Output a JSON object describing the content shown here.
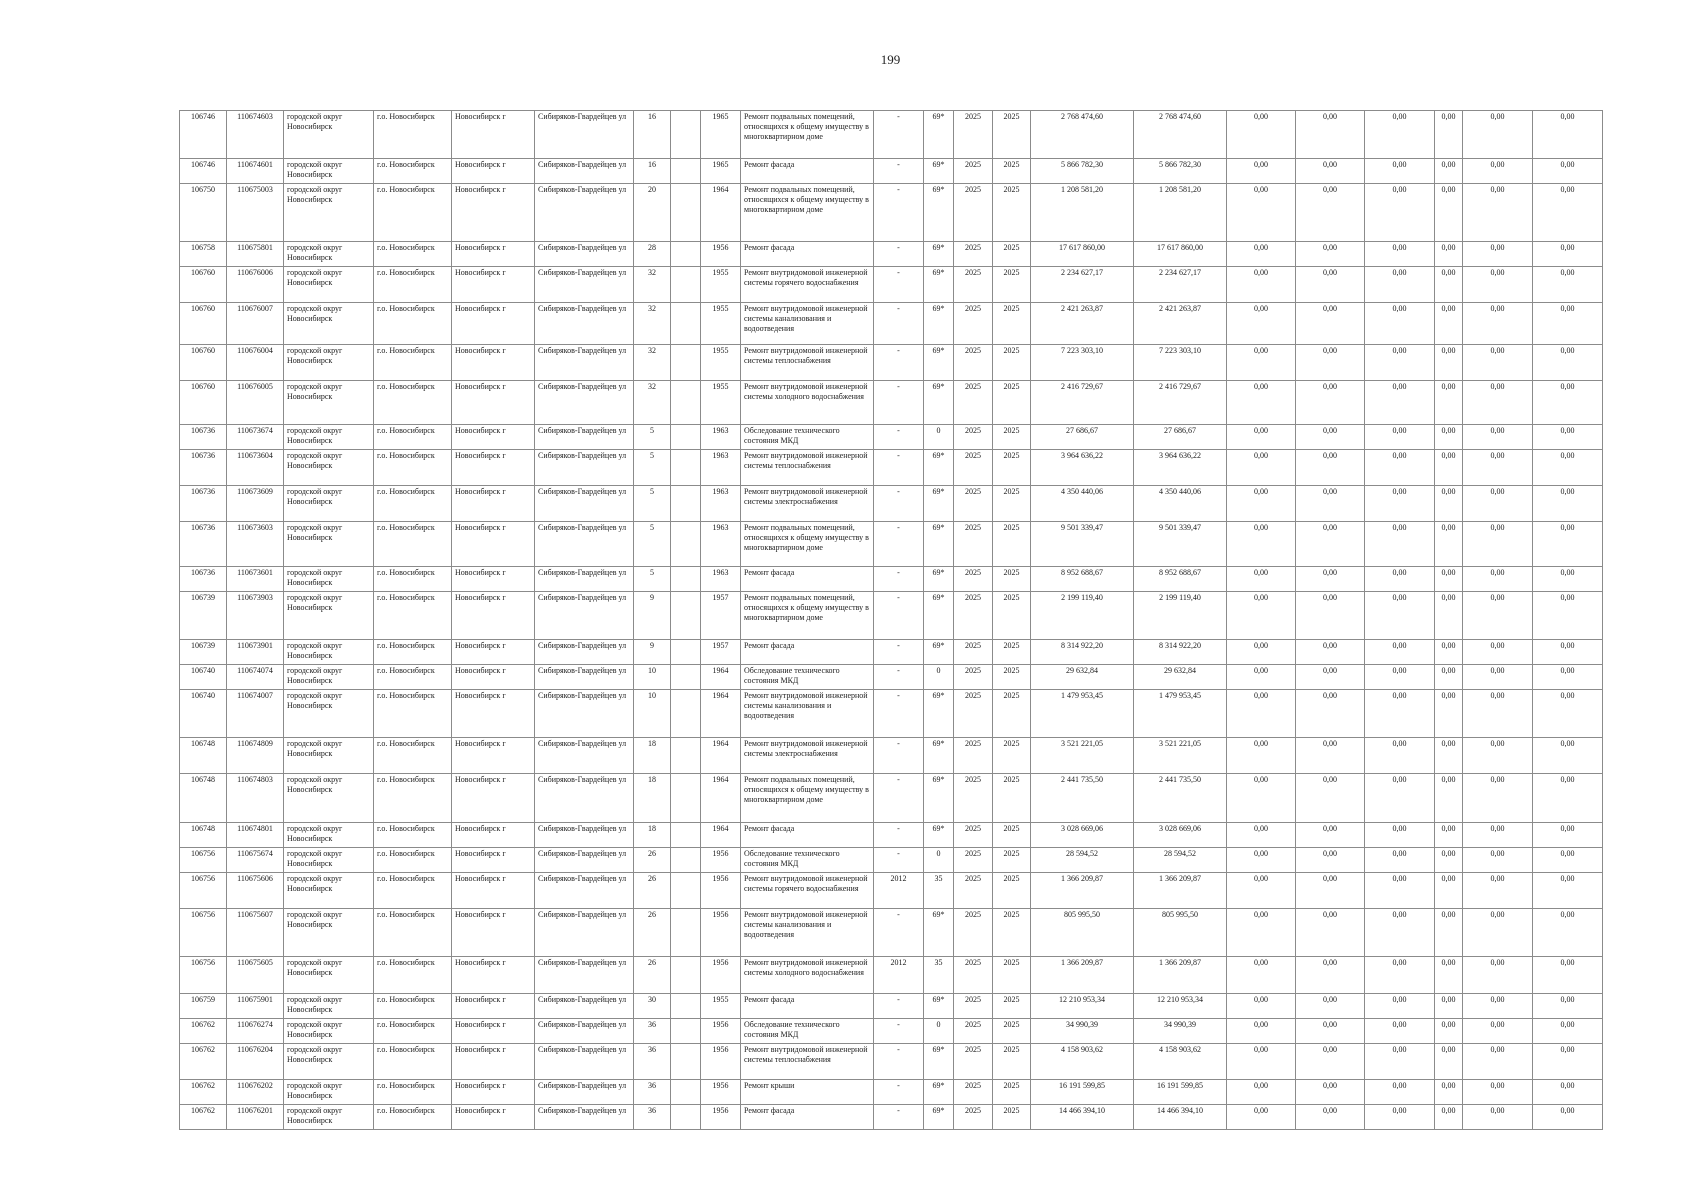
{
  "page": {
    "number": "199"
  },
  "table": {
    "rows": [
      [
        "106746",
        "110674603",
        "городской округ Новосибирск",
        "г.о. Новосибирск",
        "Новосибирск г",
        "Сибиряков-Гвардейцев ул",
        "16",
        "",
        "1965",
        "Ремонт подвальных помещений, относящихся к общему имуществу в многоквартирном доме",
        "-",
        "69*",
        "2025",
        "2025",
        "2 768 474,60",
        "2 768 474,60",
        "0,00",
        "0,00",
        "0,00",
        "0,00",
        "0,00",
        "0,00"
      ],
      [
        "106746",
        "110674601",
        "городской округ Новосибирск",
        "г.о. Новосибирск",
        "Новосибирск г",
        "Сибиряков-Гвардейцев ул",
        "16",
        "",
        "1965",
        "Ремонт фасада",
        "-",
        "69*",
        "2025",
        "2025",
        "5 866 782,30",
        "5 866 782,30",
        "0,00",
        "0,00",
        "0,00",
        "0,00",
        "0,00",
        "0,00"
      ],
      [
        "106750",
        "110675003",
        "городской округ Новосибирск",
        "г.о. Новосибирск",
        "Новосибирск г",
        "Сибиряков-Гвардейцев ул",
        "20",
        "",
        "1964",
        "Ремонт подвальных помещений, относящихся к общему имуществу в многоквартирном доме",
        "-",
        "69*",
        "2025",
        "2025",
        "1 208 581,20",
        "1 208 581,20",
        "0,00",
        "0,00",
        "0,00",
        "0,00",
        "0,00",
        "0,00"
      ],
      [
        "106758",
        "110675801",
        "городской округ Новосибирск",
        "г.о. Новосибирск",
        "Новосибирск г",
        "Сибиряков-Гвардейцев ул",
        "28",
        "",
        "1956",
        "Ремонт фасада",
        "-",
        "69*",
        "2025",
        "2025",
        "17 617 860,00",
        "17 617 860,00",
        "0,00",
        "0,00",
        "0,00",
        "0,00",
        "0,00",
        "0,00"
      ],
      [
        "106760",
        "110676006",
        "городской округ Новосибирск",
        "г.о. Новосибирск",
        "Новосибирск г",
        "Сибиряков-Гвардейцев ул",
        "32",
        "",
        "1955",
        "Ремонт внутридомовой инженерной системы горячего водоснабжения",
        "-",
        "69*",
        "2025",
        "2025",
        "2 234 627,17",
        "2 234 627,17",
        "0,00",
        "0,00",
        "0,00",
        "0,00",
        "0,00",
        "0,00"
      ],
      [
        "106760",
        "110676007",
        "городской округ Новосибирск",
        "г.о. Новосибирск",
        "Новосибирск г",
        "Сибиряков-Гвардейцев ул",
        "32",
        "",
        "1955",
        "Ремонт внутридомовой инженерной системы канализования и водоотведения",
        "-",
        "69*",
        "2025",
        "2025",
        "2 421 263,87",
        "2 421 263,87",
        "0,00",
        "0,00",
        "0,00",
        "0,00",
        "0,00",
        "0,00"
      ],
      [
        "106760",
        "110676004",
        "городской округ Новосибирск",
        "г.о. Новосибирск",
        "Новосибирск г",
        "Сибиряков-Гвардейцев ул",
        "32",
        "",
        "1955",
        "Ремонт внутридомовой инженерной системы теплоснабжения",
        "-",
        "69*",
        "2025",
        "2025",
        "7 223 303,10",
        "7 223 303,10",
        "0,00",
        "0,00",
        "0,00",
        "0,00",
        "0,00",
        "0,00"
      ],
      [
        "106760",
        "110676005",
        "городской округ Новосибирск",
        "г.о. Новосибирск",
        "Новосибирск г",
        "Сибиряков-Гвардейцев ул",
        "32",
        "",
        "1955",
        "Ремонт внутридомовой инженерной системы холодного водоснабжения",
        "-",
        "69*",
        "2025",
        "2025",
        "2 416 729,67",
        "2 416 729,67",
        "0,00",
        "0,00",
        "0,00",
        "0,00",
        "0,00",
        "0,00"
      ],
      [
        "106736",
        "110673674",
        "городской округ Новосибирск",
        "г.о. Новосибирск",
        "Новосибирск г",
        "Сибиряков-Гвардейцев ул",
        "5",
        "",
        "1963",
        "Обследование технического состояния МКД",
        "-",
        "0",
        "2025",
        "2025",
        "27 686,67",
        "27 686,67",
        "0,00",
        "0,00",
        "0,00",
        "0,00",
        "0,00",
        "0,00"
      ],
      [
        "106736",
        "110673604",
        "городской округ Новосибирск",
        "г.о. Новосибирск",
        "Новосибирск г",
        "Сибиряков-Гвардейцев ул",
        "5",
        "",
        "1963",
        "Ремонт внутридомовой инженерной системы теплоснабжения",
        "-",
        "69*",
        "2025",
        "2025",
        "3 964 636,22",
        "3 964 636,22",
        "0,00",
        "0,00",
        "0,00",
        "0,00",
        "0,00",
        "0,00"
      ],
      [
        "106736",
        "110673609",
        "городской округ Новосибирск",
        "г.о. Новосибирск",
        "Новосибирск г",
        "Сибиряков-Гвардейцев ул",
        "5",
        "",
        "1963",
        "Ремонт внутридомовой инженерной системы электроснабжения",
        "-",
        "69*",
        "2025",
        "2025",
        "4 350 440,06",
        "4 350 440,06",
        "0,00",
        "0,00",
        "0,00",
        "0,00",
        "0,00",
        "0,00"
      ],
      [
        "106736",
        "110673603",
        "городской округ Новосибирск",
        "г.о. Новосибирск",
        "Новосибирск г",
        "Сибиряков-Гвардейцев ул",
        "5",
        "",
        "1963",
        "Ремонт подвальных помещений, относящихся к общему имуществу в многоквартирном доме",
        "-",
        "69*",
        "2025",
        "2025",
        "9 501 339,47",
        "9 501 339,47",
        "0,00",
        "0,00",
        "0,00",
        "0,00",
        "0,00",
        "0,00"
      ],
      [
        "106736",
        "110673601",
        "городской округ Новосибирск",
        "г.о. Новосибирск",
        "Новосибирск г",
        "Сибиряков-Гвардейцев ул",
        "5",
        "",
        "1963",
        "Ремонт фасада",
        "-",
        "69*",
        "2025",
        "2025",
        "8 952 688,67",
        "8 952 688,67",
        "0,00",
        "0,00",
        "0,00",
        "0,00",
        "0,00",
        "0,00"
      ],
      [
        "106739",
        "110673903",
        "городской округ Новосибирск",
        "г.о. Новосибирск",
        "Новосибирск г",
        "Сибиряков-Гвардейцев ул",
        "9",
        "",
        "1957",
        "Ремонт подвальных помещений, относящихся к общему имуществу в многоквартирном доме",
        "-",
        "69*",
        "2025",
        "2025",
        "2 199 119,40",
        "2 199 119,40",
        "0,00",
        "0,00",
        "0,00",
        "0,00",
        "0,00",
        "0,00"
      ],
      [
        "106739",
        "110673901",
        "городской округ Новосибирск",
        "г.о. Новосибирск",
        "Новосибирск г",
        "Сибиряков-Гвардейцев ул",
        "9",
        "",
        "1957",
        "Ремонт фасада",
        "-",
        "69*",
        "2025",
        "2025",
        "8 314 922,20",
        "8 314 922,20",
        "0,00",
        "0,00",
        "0,00",
        "0,00",
        "0,00",
        "0,00"
      ],
      [
        "106740",
        "110674074",
        "городской округ Новосибирск",
        "г.о. Новосибирск",
        "Новосибирск г",
        "Сибиряков-Гвардейцев ул",
        "10",
        "",
        "1964",
        "Обследование технического состояния МКД",
        "-",
        "0",
        "2025",
        "2025",
        "29 632,84",
        "29 632,84",
        "0,00",
        "0,00",
        "0,00",
        "0,00",
        "0,00",
        "0,00"
      ],
      [
        "106740",
        "110674007",
        "городской округ Новосибирск",
        "г.о. Новосибирск",
        "Новосибирск г",
        "Сибиряков-Гвардейцев ул",
        "10",
        "",
        "1964",
        "Ремонт внутридомовой инженерной системы канализования и водоотведения",
        "-",
        "69*",
        "2025",
        "2025",
        "1 479 953,45",
        "1 479 953,45",
        "0,00",
        "0,00",
        "0,00",
        "0,00",
        "0,00",
        "0,00"
      ],
      [
        "106748",
        "110674809",
        "городской округ Новосибирск",
        "г.о. Новосибирск",
        "Новосибирск г",
        "Сибиряков-Гвардейцев ул",
        "18",
        "",
        "1964",
        "Ремонт внутридомовой инженерной системы электроснабжения",
        "-",
        "69*",
        "2025",
        "2025",
        "3 521 221,05",
        "3 521 221,05",
        "0,00",
        "0,00",
        "0,00",
        "0,00",
        "0,00",
        "0,00"
      ],
      [
        "106748",
        "110674803",
        "городской округ Новосибирск",
        "г.о. Новосибирск",
        "Новосибирск г",
        "Сибиряков-Гвардейцев ул",
        "18",
        "",
        "1964",
        "Ремонт подвальных помещений, относящихся к общему имуществу в многоквартирном доме",
        "-",
        "69*",
        "2025",
        "2025",
        "2 441 735,50",
        "2 441 735,50",
        "0,00",
        "0,00",
        "0,00",
        "0,00",
        "0,00",
        "0,00"
      ],
      [
        "106748",
        "110674801",
        "городской округ Новосибирск",
        "г.о. Новосибирск",
        "Новосибирск г",
        "Сибиряков-Гвардейцев ул",
        "18",
        "",
        "1964",
        "Ремонт фасада",
        "-",
        "69*",
        "2025",
        "2025",
        "3 028 669,06",
        "3 028 669,06",
        "0,00",
        "0,00",
        "0,00",
        "0,00",
        "0,00",
        "0,00"
      ],
      [
        "106756",
        "110675674",
        "городской округ Новосибирск",
        "г.о. Новосибирск",
        "Новосибирск г",
        "Сибиряков-Гвардейцев ул",
        "26",
        "",
        "1956",
        "Обследование технического состояния МКД",
        "-",
        "0",
        "2025",
        "2025",
        "28 594,52",
        "28 594,52",
        "0,00",
        "0,00",
        "0,00",
        "0,00",
        "0,00",
        "0,00"
      ],
      [
        "106756",
        "110675606",
        "городской округ Новосибирск",
        "г.о. Новосибирск",
        "Новосибирск г",
        "Сибиряков-Гвардейцев ул",
        "26",
        "",
        "1956",
        "Ремонт внутридомовой инженерной системы горячего водоснабжения",
        "2012",
        "35",
        "2025",
        "2025",
        "1 366 209,87",
        "1 366 209,87",
        "0,00",
        "0,00",
        "0,00",
        "0,00",
        "0,00",
        "0,00"
      ],
      [
        "106756",
        "110675607",
        "городской округ Новосибирск",
        "г.о. Новосибирск",
        "Новосибирск г",
        "Сибиряков-Гвардейцев ул",
        "26",
        "",
        "1956",
        "Ремонт внутридомовой инженерной системы канализования и водоотведения",
        "-",
        "69*",
        "2025",
        "2025",
        "805 995,50",
        "805 995,50",
        "0,00",
        "0,00",
        "0,00",
        "0,00",
        "0,00",
        "0,00"
      ],
      [
        "106756",
        "110675605",
        "городской округ Новосибирск",
        "г.о. Новосибирск",
        "Новосибирск г",
        "Сибиряков-Гвардейцев ул",
        "26",
        "",
        "1956",
        "Ремонт внутридомовой инженерной системы холодного водоснабжения",
        "2012",
        "35",
        "2025",
        "2025",
        "1 366 209,87",
        "1 366 209,87",
        "0,00",
        "0,00",
        "0,00",
        "0,00",
        "0,00",
        "0,00"
      ],
      [
        "106759",
        "110675901",
        "городской округ Новосибирск",
        "г.о. Новосибирск",
        "Новосибирск г",
        "Сибиряков-Гвардейцев ул",
        "30",
        "",
        "1955",
        "Ремонт фасада",
        "-",
        "69*",
        "2025",
        "2025",
        "12 210 953,34",
        "12 210 953,34",
        "0,00",
        "0,00",
        "0,00",
        "0,00",
        "0,00",
        "0,00"
      ],
      [
        "106762",
        "110676274",
        "городской округ Новосибирск",
        "г.о. Новосибирск",
        "Новосибирск г",
        "Сибиряков-Гвардейцев ул",
        "36",
        "",
        "1956",
        "Обследование технического состояния МКД",
        "-",
        "0",
        "2025",
        "2025",
        "34 990,39",
        "34 990,39",
        "0,00",
        "0,00",
        "0,00",
        "0,00",
        "0,00",
        "0,00"
      ],
      [
        "106762",
        "110676204",
        "городской округ Новосибирск",
        "г.о. Новосибирск",
        "Новосибирск г",
        "Сибиряков-Гвардейцев ул",
        "36",
        "",
        "1956",
        "Ремонт внутридомовой инженерной системы теплоснабжения",
        "-",
        "69*",
        "2025",
        "2025",
        "4 158 903,62",
        "4 158 903,62",
        "0,00",
        "0,00",
        "0,00",
        "0,00",
        "0,00",
        "0,00"
      ],
      [
        "106762",
        "110676202",
        "городской округ Новосибирск",
        "г.о. Новосибирск",
        "Новосибирск г",
        "Сибиряков-Гвардейцев ул",
        "36",
        "",
        "1956",
        "Ремонт крыши",
        "-",
        "69*",
        "2025",
        "2025",
        "16 191 599,85",
        "16 191 599,85",
        "0,00",
        "0,00",
        "0,00",
        "0,00",
        "0,00",
        "0,00"
      ],
      [
        "106762",
        "110676201",
        "городской округ Новосибирск",
        "г.о. Новосибирск",
        "Новосибирск г",
        "Сибиряков-Гвардейцев ул",
        "36",
        "",
        "1956",
        "Ремонт фасада",
        "-",
        "69*",
        "2025",
        "2025",
        "14 466 394,10",
        "14 466 394,10",
        "0,00",
        "0,00",
        "0,00",
        "0,00",
        "0,00",
        "0,00"
      ]
    ]
  }
}
